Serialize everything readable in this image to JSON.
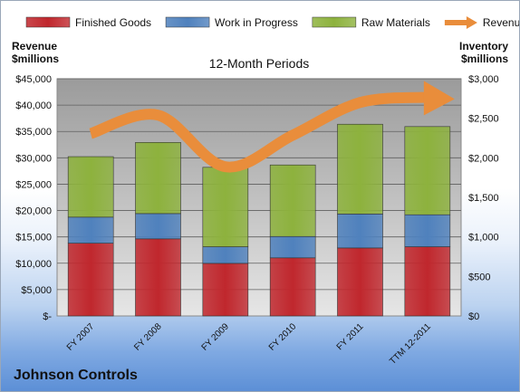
{
  "chart_data": {
    "type": "bar",
    "subtitle": "12-Month Periods",
    "categories": [
      "FY 2007",
      "FY 2008",
      "FY 2009",
      "FY 2010",
      "FY 2011",
      "TTM 12-2011"
    ],
    "ylabel_left": [
      "Revenue",
      "$millions"
    ],
    "ylabel_right": [
      "Inventory",
      "$millions"
    ],
    "ylim_left": [
      0,
      45000
    ],
    "ylim_right": [
      0,
      3000
    ],
    "left_ticks": [
      "$-",
      "$5,000",
      "$10,000",
      "$15,000",
      "$20,000",
      "$25,000",
      "$30,000",
      "$35,000",
      "$40,000",
      "$45,000"
    ],
    "right_ticks": [
      "$0",
      "$500",
      "$1,000",
      "$1,500",
      "$2,000",
      "$2,500",
      "$3,000"
    ],
    "grid": true,
    "legend_position": "top",
    "series": [
      {
        "name": "Finished Goods",
        "axis": "right",
        "color": "#c0272d",
        "values": [
          920,
          975,
          665,
          735,
          860,
          875
        ]
      },
      {
        "name": "Work in Progress",
        "axis": "right",
        "color": "#4f81bd",
        "values": [
          330,
          320,
          210,
          270,
          430,
          405
        ]
      },
      {
        "name": "Raw Materials",
        "axis": "right",
        "color": "#8db23d",
        "values": [
          765,
          900,
          1005,
          905,
          1135,
          1115
        ]
      },
      {
        "name": "Revenue",
        "axis": "left",
        "color": "#e98d3b",
        "type": "line",
        "values": [
          34600,
          38100,
          28300,
          34300,
          40500,
          41500
        ]
      }
    ]
  },
  "footer": {
    "company": "Johnson Controls"
  }
}
